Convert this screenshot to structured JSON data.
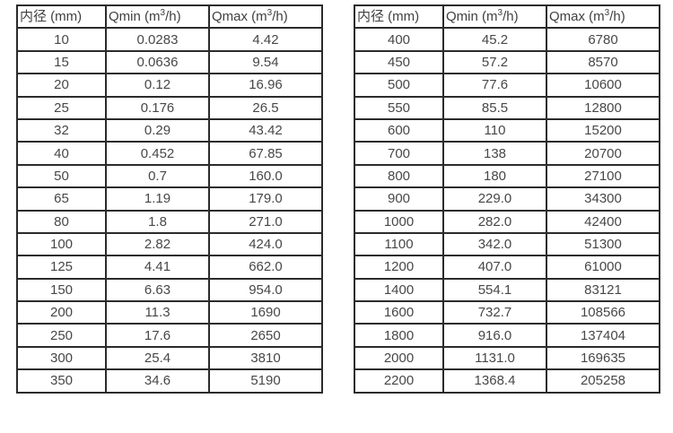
{
  "page": {
    "background": "#ffffff"
  },
  "colors": {
    "border": "#2b2b2b",
    "header_text": "#3f3f3f",
    "cell_text": "#474747"
  },
  "tables": [
    {
      "name": "flow-table-left",
      "headers": [
        "内径 (mm)",
        "Qmin (m³/h)",
        "Qmax (m³/h)"
      ],
      "rows": [
        [
          "10",
          "0.0283",
          "4.42"
        ],
        [
          "15",
          "0.0636",
          "9.54"
        ],
        [
          "20",
          "0.12",
          "16.96"
        ],
        [
          "25",
          "0.176",
          "26.5"
        ],
        [
          "32",
          "0.29",
          "43.42"
        ],
        [
          "40",
          "0.452",
          "67.85"
        ],
        [
          "50",
          "0.7",
          "160.0"
        ],
        [
          "65",
          "1.19",
          "179.0"
        ],
        [
          "80",
          "1.8",
          "271.0"
        ],
        [
          "100",
          "2.82",
          "424.0"
        ],
        [
          "125",
          "4.41",
          "662.0"
        ],
        [
          "150",
          "6.63",
          "954.0"
        ],
        [
          "200",
          "11.3",
          "1690"
        ],
        [
          "250",
          "17.6",
          "2650"
        ],
        [
          "300",
          "25.4",
          "3810"
        ],
        [
          "350",
          "34.6",
          "5190"
        ]
      ]
    },
    {
      "name": "flow-table-right",
      "headers": [
        "内径 (mm)",
        "Qmin (m³/h)",
        "Qmax (m³/h)"
      ],
      "rows": [
        [
          "400",
          "45.2",
          "6780"
        ],
        [
          "450",
          "57.2",
          "8570"
        ],
        [
          "500",
          "77.6",
          "10600"
        ],
        [
          "550",
          "85.5",
          "12800"
        ],
        [
          "600",
          "110",
          "15200"
        ],
        [
          "700",
          "138",
          "20700"
        ],
        [
          "800",
          "180",
          "27100"
        ],
        [
          "900",
          "229.0",
          "34300"
        ],
        [
          "1000",
          "282.0",
          "42400"
        ],
        [
          "1100",
          "342.0",
          "51300"
        ],
        [
          "1200",
          "407.0",
          "61000"
        ],
        [
          "1400",
          "554.1",
          "83121"
        ],
        [
          "1600",
          "732.7",
          "108566"
        ],
        [
          "1800",
          "916.0",
          "137404"
        ],
        [
          "2000",
          "1131.0",
          "169635"
        ],
        [
          "2200",
          "1368.4",
          "205258"
        ]
      ]
    }
  ]
}
